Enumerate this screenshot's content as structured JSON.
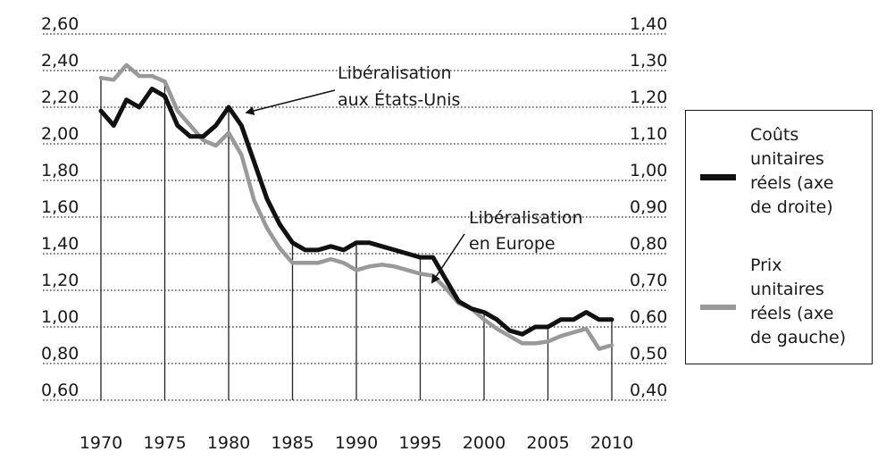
{
  "chart_data": {
    "type": "line",
    "x": [
      1970,
      1971,
      1972,
      1973,
      1974,
      1975,
      1976,
      1977,
      1978,
      1979,
      1980,
      1981,
      1982,
      1983,
      1984,
      1985,
      1986,
      1987,
      1988,
      1989,
      1990,
      1991,
      1992,
      1993,
      1994,
      1995,
      1996,
      1997,
      1998,
      1999,
      2000,
      2001,
      2002,
      2003,
      2004,
      2005,
      2006,
      2007,
      2008,
      2009,
      2010
    ],
    "x_ticks": [
      "1970",
      "1975",
      "1980",
      "1985",
      "1990",
      "1995",
      "2000",
      "2005",
      "2010"
    ],
    "xlim": [
      1970,
      2010
    ],
    "y_left_ticks": [
      "2,60",
      "2,40",
      "2,20",
      "2,00",
      "1,80",
      "1,60",
      "1,40",
      "1,20",
      "1,00",
      "0,80",
      "0,60"
    ],
    "y_right_ticks": [
      "1,40",
      "1,30",
      "1,20",
      "1,10",
      "1,00",
      "0,90",
      "0,80",
      "0,70",
      "0,60",
      "0,50",
      "0,40"
    ],
    "ylim_left": [
      0.6,
      2.6
    ],
    "ylim_right": [
      0.4,
      1.4
    ],
    "grid": true,
    "legend_position": "right",
    "series": [
      {
        "name": "Coûts unitaires réels (axe de droite)",
        "axis": "right",
        "color": "#111111",
        "values": [
          1.19,
          1.15,
          1.22,
          1.2,
          1.25,
          1.23,
          1.15,
          1.12,
          1.12,
          1.15,
          1.2,
          1.15,
          1.05,
          0.95,
          0.88,
          0.83,
          0.81,
          0.81,
          0.82,
          0.81,
          0.83,
          0.83,
          0.82,
          0.81,
          0.8,
          0.79,
          0.79,
          0.73,
          0.67,
          0.65,
          0.64,
          0.62,
          0.59,
          0.58,
          0.6,
          0.6,
          0.62,
          0.62,
          0.64,
          0.62,
          0.62
        ]
      },
      {
        "name": "Prix unitaires réels (axe de gauche)",
        "axis": "left",
        "color": "#999999",
        "values": [
          2.36,
          2.35,
          2.43,
          2.37,
          2.37,
          2.34,
          2.18,
          2.1,
          2.02,
          1.99,
          2.06,
          1.94,
          1.69,
          1.54,
          1.43,
          1.35,
          1.35,
          1.35,
          1.37,
          1.35,
          1.31,
          1.33,
          1.34,
          1.33,
          1.31,
          1.29,
          1.28,
          1.21,
          1.13,
          1.1,
          1.04,
          0.99,
          0.95,
          0.91,
          0.91,
          0.92,
          0.95,
          0.97,
          0.99,
          0.88,
          0.9
        ]
      }
    ],
    "annotations": [
      {
        "lines": [
          "Libéralisation",
          "aux États-Unis"
        ],
        "year": 1981
      },
      {
        "lines": [
          "Libéralisation",
          "en Europe"
        ],
        "year": 1995
      }
    ],
    "legend": [
      {
        "lines": [
          "Coûts",
          "unitaires",
          "réels (axe",
          "de droite)"
        ],
        "color": "#111111"
      },
      {
        "lines": [
          "Prix",
          "unitaires",
          "réels (axe",
          "de gauche)"
        ],
        "color": "#999999"
      }
    ]
  }
}
